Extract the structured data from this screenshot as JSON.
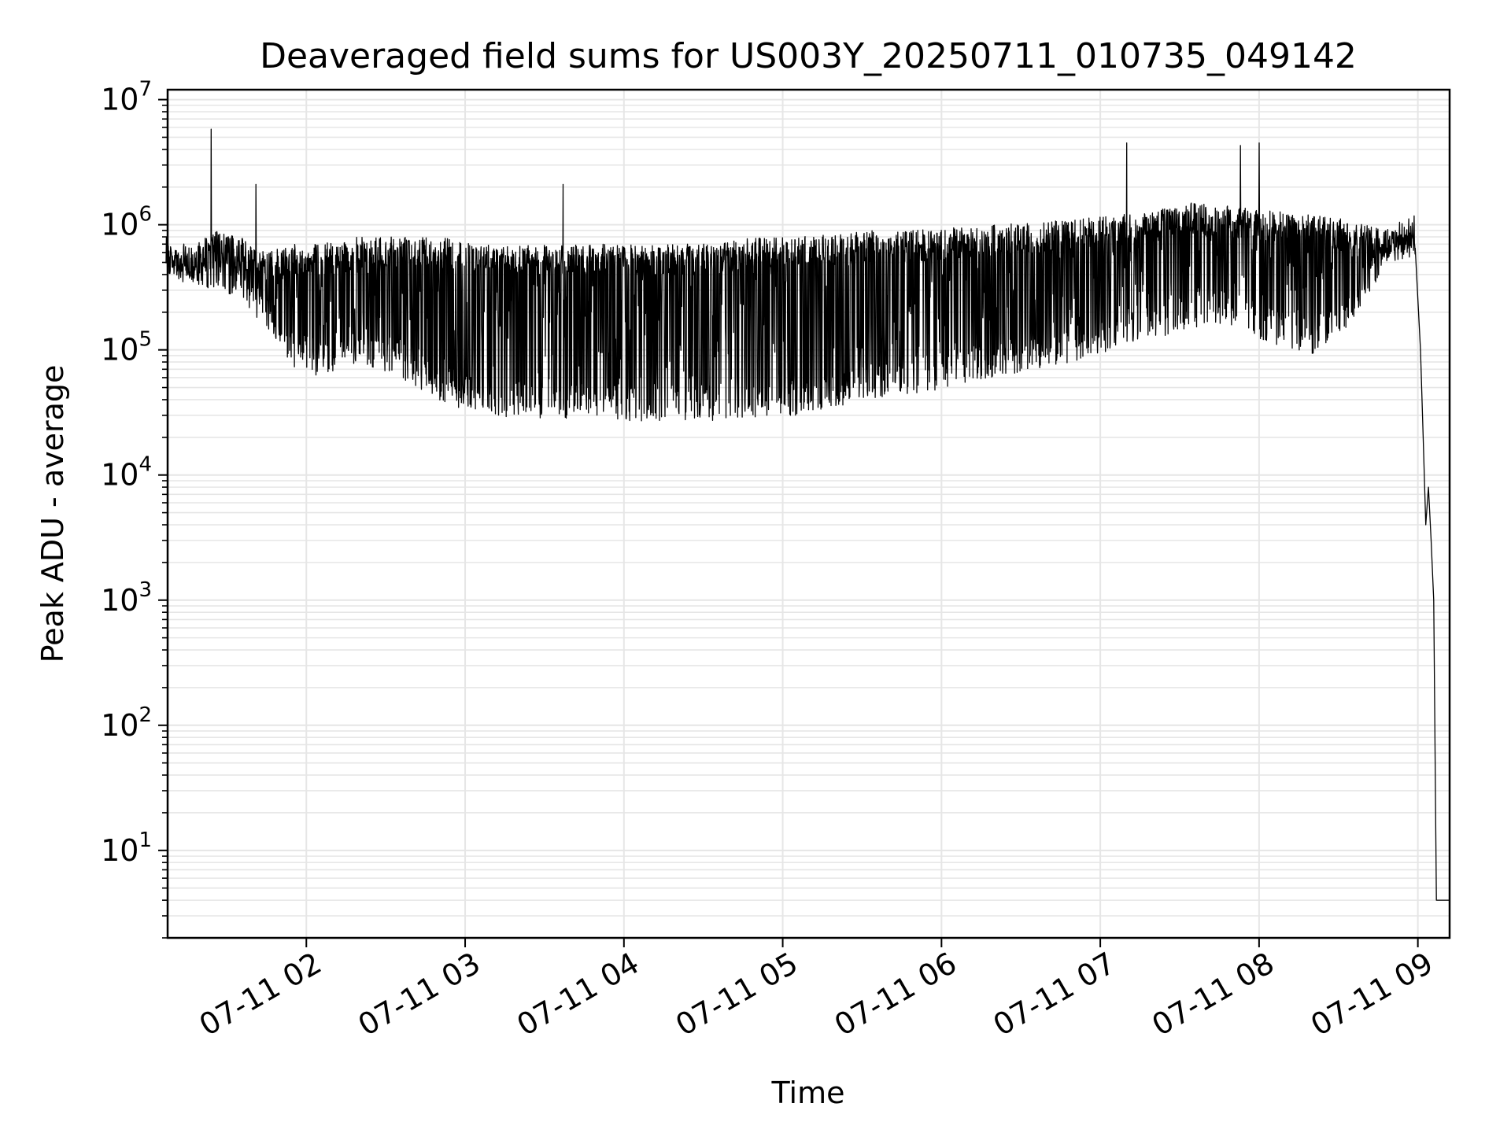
{
  "chart_data": {
    "type": "line",
    "title": "Deaveraged field sums for US003Y_20250711_010735_049142",
    "xlabel": "Time",
    "ylabel": "Peak ADU - average",
    "y_scale": "log",
    "ylim": [
      2,
      12000000
    ],
    "xlim": [
      "07-11 01:07:35",
      "07-11 09:12:00"
    ],
    "grid": true,
    "line_color": "#000000",
    "grid_color": "#e6e6e6",
    "x_ticks": [
      {
        "label": "07-11 02",
        "time": "07-11 02:00"
      },
      {
        "label": "07-11 03",
        "time": "07-11 03:00"
      },
      {
        "label": "07-11 04",
        "time": "07-11 04:00"
      },
      {
        "label": "07-11 05",
        "time": "07-11 05:00"
      },
      {
        "label": "07-11 06",
        "time": "07-11 06:00"
      },
      {
        "label": "07-11 07",
        "time": "07-11 07:00"
      },
      {
        "label": "07-11 08",
        "time": "07-11 08:00"
      },
      {
        "label": "07-11 09",
        "time": "07-11 09:00"
      }
    ],
    "y_ticks": [
      {
        "base": "10",
        "exp": "1",
        "value": 10
      },
      {
        "base": "10",
        "exp": "2",
        "value": 100
      },
      {
        "base": "10",
        "exp": "3",
        "value": 1000
      },
      {
        "base": "10",
        "exp": "4",
        "value": 10000
      },
      {
        "base": "10",
        "exp": "5",
        "value": 100000
      },
      {
        "base": "10",
        "exp": "6",
        "value": 1000000
      },
      {
        "base": "10",
        "exp": "7",
        "value": 10000000
      }
    ],
    "series": [
      {
        "envelope": {
          "time": [
            "07-11 01:07",
            "07-11 01:15",
            "07-11 01:25",
            "07-11 01:35",
            "07-11 01:45",
            "07-11 01:55",
            "07-11 02:05",
            "07-11 02:20",
            "07-11 02:35",
            "07-11 02:50",
            "07-11 03:05",
            "07-11 03:20",
            "07-11 03:35",
            "07-11 03:50",
            "07-11 04:05",
            "07-11 04:20",
            "07-11 04:35",
            "07-11 04:50",
            "07-11 05:05",
            "07-11 05:20",
            "07-11 05:35",
            "07-11 05:50",
            "07-11 06:05",
            "07-11 06:20",
            "07-11 06:35",
            "07-11 06:50",
            "07-11 07:05",
            "07-11 07:20",
            "07-11 07:35",
            "07-11 07:50",
            "07-11 08:05",
            "07-11 08:20",
            "07-11 08:35",
            "07-11 08:50"
          ],
          "upper": [
            700000,
            600000,
            900000,
            800000,
            600000,
            700000,
            700000,
            800000,
            800000,
            800000,
            700000,
            700000,
            700000,
            700000,
            700000,
            700000,
            700000,
            800000,
            800000,
            850000,
            900000,
            900000,
            950000,
            1000000,
            1050000,
            1100000,
            1200000,
            1300000,
            1500000,
            1400000,
            1300000,
            1200000,
            1100000,
            900000
          ],
          "lower": [
            400000,
            350000,
            300000,
            250000,
            150000,
            70000,
            60000,
            80000,
            60000,
            40000,
            30000,
            28000,
            28000,
            28000,
            27000,
            27000,
            27000,
            28000,
            30000,
            35000,
            40000,
            45000,
            50000,
            60000,
            70000,
            80000,
            100000,
            120000,
            150000,
            150000,
            110000,
            90000,
            150000,
            600000
          ]
        }
      }
    ],
    "spikes": [
      {
        "time": "07-11 01:24",
        "value": 5800000
      },
      {
        "time": "07-11 01:41",
        "value": 2100000
      },
      {
        "time": "07-11 03:37",
        "value": 2100000
      },
      {
        "time": "07-11 07:10",
        "value": 4500000
      },
      {
        "time": "07-11 07:53",
        "value": 4300000
      },
      {
        "time": "07-11 08:00",
        "value": 4500000
      }
    ],
    "dropoff": {
      "time": [
        "07-11 08:59",
        "07-11 09:01",
        "07-11 09:02",
        "07-11 09:03",
        "07-11 09:04",
        "07-11 09:05",
        "07-11 09:06",
        "07-11 09:07",
        "07-11 09:12"
      ],
      "value": [
        650000,
        100000,
        20000,
        4000,
        8000,
        3000,
        1000,
        4,
        4
      ]
    }
  }
}
